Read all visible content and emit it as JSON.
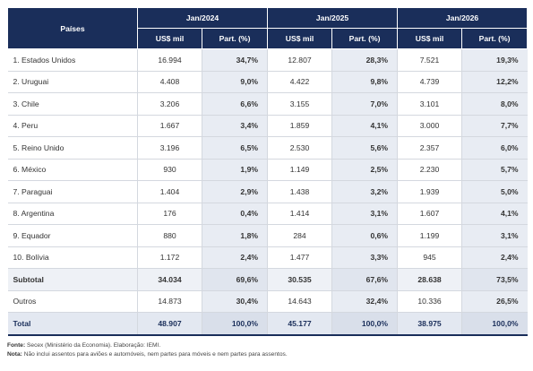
{
  "header": {
    "paises_label": "Países",
    "periods": [
      "Jan/2024",
      "Jan/2025",
      "Jan/2026"
    ],
    "col_value": "US$ mil",
    "col_share": "Part. (%)"
  },
  "rows": [
    {
      "pais": "1. Estados Unidos",
      "v24": "16.994",
      "p24": "34,7%",
      "v25": "12.807",
      "p25": "28,3%",
      "v26": "7.521",
      "p26": "19,3%"
    },
    {
      "pais": "2. Uruguai",
      "v24": "4.408",
      "p24": "9,0%",
      "v25": "4.422",
      "p25": "9,8%",
      "v26": "4.739",
      "p26": "12,2%"
    },
    {
      "pais": "3. Chile",
      "v24": "3.206",
      "p24": "6,6%",
      "v25": "3.155",
      "p25": "7,0%",
      "v26": "3.101",
      "p26": "8,0%"
    },
    {
      "pais": "4. Peru",
      "v24": "1.667",
      "p24": "3,4%",
      "v25": "1.859",
      "p25": "4,1%",
      "v26": "3.000",
      "p26": "7,7%"
    },
    {
      "pais": "5. Reino Unido",
      "v24": "3.196",
      "p24": "6,5%",
      "v25": "2.530",
      "p25": "5,6%",
      "v26": "2.357",
      "p26": "6,0%"
    },
    {
      "pais": "6. México",
      "v24": "930",
      "p24": "1,9%",
      "v25": "1.149",
      "p25": "2,5%",
      "v26": "2.230",
      "p26": "5,7%"
    },
    {
      "pais": "7. Paraguai",
      "v24": "1.404",
      "p24": "2,9%",
      "v25": "1.438",
      "p25": "3,2%",
      "v26": "1.939",
      "p26": "5,0%"
    },
    {
      "pais": "8. Argentina",
      "v24": "176",
      "p24": "0,4%",
      "v25": "1.414",
      "p25": "3,1%",
      "v26": "1.607",
      "p26": "4,1%"
    },
    {
      "pais": "9. Equador",
      "v24": "880",
      "p24": "1,8%",
      "v25": "284",
      "p25": "0,6%",
      "v26": "1.199",
      "p26": "3,1%"
    },
    {
      "pais": "10. Bolívia",
      "v24": "1.172",
      "p24": "2,4%",
      "v25": "1.477",
      "p25": "3,3%",
      "v26": "945",
      "p26": "2,4%"
    }
  ],
  "subtotal": {
    "pais": "Subtotal",
    "v24": "34.034",
    "p24": "69,6%",
    "v25": "30.535",
    "p25": "67,6%",
    "v26": "28.638",
    "p26": "73,5%"
  },
  "outros": {
    "pais": "Outros",
    "v24": "14.873",
    "p24": "30,4%",
    "v25": "14.643",
    "p25": "32,4%",
    "v26": "10.336",
    "p26": "26,5%"
  },
  "total": {
    "pais": "Total",
    "v24": "48.907",
    "p24": "100,0%",
    "v25": "45.177",
    "p25": "100,0%",
    "v26": "38.975",
    "p26": "100,0%"
  },
  "footer": {
    "fonte_label": "Fonte:",
    "fonte_text": "Secex (Ministério da Economia). Elaboração: IEMI.",
    "nota_label": "Nota:",
    "nota_text": "Não inclui assentos para aviões e automóveis, nem partes para móveis e nem partes para assentos."
  },
  "colors": {
    "header_bg": "#1a2e5a",
    "header_text": "#ffffff",
    "share_bg": "#e8ecf3"
  }
}
